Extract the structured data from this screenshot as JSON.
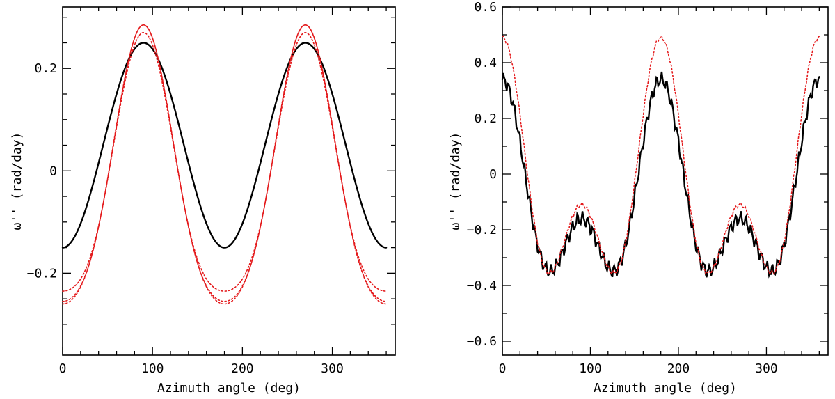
{
  "chart_data": [
    {
      "type": "line",
      "panel": "left",
      "title": "",
      "xlabel": "Azimuth angle (deg)",
      "ylabel": "ω'' (rad/day)",
      "xlim": [
        0,
        370
      ],
      "ylim": [
        -0.36,
        0.32
      ],
      "xticks_major": [
        0,
        100,
        200,
        300
      ],
      "xtick_labels": [
        "0",
        "100",
        "200",
        "300"
      ],
      "xticks_minor": [
        20,
        40,
        60,
        80,
        120,
        140,
        160,
        180,
        220,
        240,
        260,
        280,
        320,
        340,
        360
      ],
      "yticks_major": [
        -0.2,
        0,
        0.2
      ],
      "ytick_labels": [
        "−0.2",
        "0",
        "0.2"
      ],
      "yticks_minor": [
        -0.3,
        -0.25,
        -0.15,
        -0.1,
        -0.05,
        0.05,
        0.1,
        0.15,
        0.25,
        0.3
      ],
      "grid": false,
      "series": [
        {
          "name": "solid",
          "color": "#000000",
          "style": "solid",
          "mean": 0.05,
          "a2": 0.2,
          "a4": 0,
          "noise": 0,
          "phase": 0
        },
        {
          "name": "dotted-1",
          "color": "#e41a1c",
          "style": "dotted",
          "mean": -0.025,
          "a2": 0.27,
          "a4": 0.04,
          "noise": 0,
          "phase": 0
        },
        {
          "name": "dotted-2",
          "color": "#e41a1c",
          "style": "dotted",
          "mean": -0.02,
          "a2": 0.26,
          "a4": 0.045,
          "noise": 0,
          "phase": 0
        },
        {
          "name": "dotted-3",
          "color": "#e41a1c",
          "style": "dotted",
          "mean": -0.03,
          "a2": 0.265,
          "a4": 0.035,
          "noise": 0,
          "phase": 0
        }
      ]
    },
    {
      "type": "line",
      "panel": "right",
      "title": "",
      "xlabel": "Azimuth angle (deg)",
      "ylabel": "ω'' (rad/day)",
      "xlim": [
        0,
        370
      ],
      "ylim": [
        -0.65,
        0.6
      ],
      "xticks_major": [
        0,
        100,
        200,
        300
      ],
      "xtick_labels": [
        "0",
        "100",
        "200",
        "300"
      ],
      "xticks_minor": [
        20,
        40,
        60,
        80,
        120,
        140,
        160,
        180,
        220,
        240,
        260,
        280,
        320,
        340,
        360
      ],
      "yticks_major": [
        -0.6,
        -0.4,
        -0.2,
        0,
        0.2,
        0.4,
        0.6
      ],
      "ytick_labels": [
        "−0.6",
        "−0.4",
        "−0.2",
        "0",
        "0.2",
        "0.4",
        "0.6"
      ],
      "yticks_minor": [
        -0.5,
        -0.3,
        -0.1,
        0.1,
        0.3,
        0.5
      ],
      "grid": false,
      "series": [
        {
          "name": "solid",
          "color": "#000000",
          "style": "solid",
          "mean": -0.11,
          "a2": -0.25,
          "a4": 0.2,
          "noise": 0.02,
          "phase": 0
        },
        {
          "name": "dotted",
          "color": "#e41a1c",
          "style": "dotted",
          "mean": -0.06,
          "a2": -0.3,
          "a4": 0.25,
          "noise": 0.006,
          "phase": 0.6
        }
      ]
    }
  ]
}
